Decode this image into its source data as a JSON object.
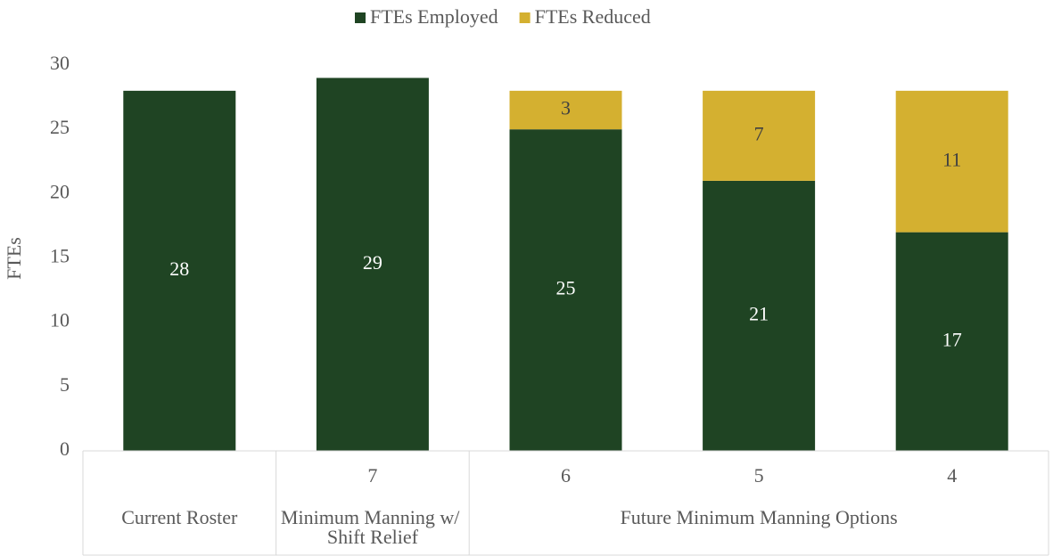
{
  "chart_data": {
    "type": "stacked_bar",
    "y_label": "FTEs",
    "categories": [
      null,
      "7",
      "6",
      "5",
      "4"
    ],
    "groups": [
      {
        "label": "Current Roster",
        "count": 1
      },
      {
        "label": "Minimum Manning w/ Shift Relief",
        "count": 1
      },
      {
        "label": "Future Minimum Manning Options",
        "count": 3
      }
    ],
    "series": [
      {
        "name": "FTEs Employed",
        "color": "#1f4423",
        "label_color": "#ffffff",
        "values": [
          28,
          29,
          25,
          21,
          17
        ]
      },
      {
        "name": "FTEs Reduced",
        "color": "#d4b030",
        "label_color": "#404040",
        "values": [
          null,
          null,
          3,
          7,
          11
        ]
      }
    ],
    "ylim": [
      0,
      30
    ],
    "yticks": [
      0,
      5,
      10,
      15,
      20,
      25,
      30
    ],
    "grid": false,
    "legend": "top"
  }
}
